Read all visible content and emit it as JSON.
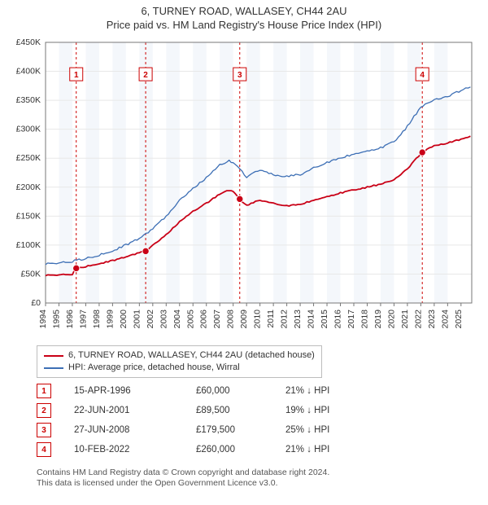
{
  "header": {
    "line1": "6, TURNEY ROAD, WALLASEY, CH44 2AU",
    "line2": "Price paid vs. HM Land Registry's House Price Index (HPI)"
  },
  "chart": {
    "type": "line",
    "background_color": "#ffffff",
    "plot_border_color": "#777777",
    "grid_color": "#e8e8e8",
    "light_band_color": "#f4f7fb",
    "x": {
      "min": 1994,
      "max": 2025.8,
      "ticks": [
        1994,
        1995,
        1996,
        1997,
        1998,
        1999,
        2000,
        2001,
        2002,
        2003,
        2004,
        2005,
        2006,
        2007,
        2008,
        2009,
        2010,
        2011,
        2012,
        2013,
        2014,
        2015,
        2016,
        2017,
        2018,
        2019,
        2020,
        2021,
        2022,
        2023,
        2024,
        2025
      ]
    },
    "y": {
      "min": 0,
      "max": 450000,
      "tick_step": 50000,
      "tick_labels": [
        "£0",
        "£50K",
        "£100K",
        "£150K",
        "£200K",
        "£250K",
        "£300K",
        "£350K",
        "£400K",
        "£450K"
      ]
    },
    "sale_guideline_color": "#cc0000",
    "sale_marker_border": "#cc0000",
    "sale_marker_badge_bg": "#ffffff",
    "series": [
      {
        "id": "price_paid",
        "label": "6, TURNEY ROAD, WALLASEY, CH44 2AU (detached house)",
        "color": "#c90016",
        "width": 1.8,
        "data": [
          [
            1994.0,
            48000
          ],
          [
            1995.0,
            48500
          ],
          [
            1996.0,
            50000
          ],
          [
            1996.29,
            60000
          ],
          [
            1997.0,
            63000
          ],
          [
            1998.0,
            68000
          ],
          [
            1999.0,
            73000
          ],
          [
            2000.0,
            80000
          ],
          [
            2001.0,
            87000
          ],
          [
            2001.47,
            89500
          ],
          [
            2002.0,
            100000
          ],
          [
            2003.0,
            118000
          ],
          [
            2004.0,
            140000
          ],
          [
            2005.0,
            158000
          ],
          [
            2006.0,
            172000
          ],
          [
            2007.0,
            188000
          ],
          [
            2007.7,
            195000
          ],
          [
            2008.0,
            193000
          ],
          [
            2008.49,
            179500
          ],
          [
            2009.0,
            168000
          ],
          [
            2010.0,
            178000
          ],
          [
            2011.0,
            172000
          ],
          [
            2012.0,
            168000
          ],
          [
            2013.0,
            170000
          ],
          [
            2014.0,
            178000
          ],
          [
            2015.0,
            184000
          ],
          [
            2016.0,
            190000
          ],
          [
            2017.0,
            195000
          ],
          [
            2018.0,
            200000
          ],
          [
            2019.0,
            205000
          ],
          [
            2020.0,
            212000
          ],
          [
            2021.0,
            232000
          ],
          [
            2022.0,
            258000
          ],
          [
            2022.11,
            260000
          ],
          [
            2023.0,
            272000
          ],
          [
            2024.0,
            276000
          ],
          [
            2025.0,
            283000
          ],
          [
            2025.7,
            288000
          ]
        ],
        "sale_points": [
          {
            "n": "1",
            "year": 1996.29,
            "price": 60000,
            "badge_y": 395000
          },
          {
            "n": "2",
            "year": 2001.47,
            "price": 89500,
            "badge_y": 395000
          },
          {
            "n": "3",
            "year": 2008.49,
            "price": 179500,
            "badge_y": 395000
          },
          {
            "n": "4",
            "year": 2022.11,
            "price": 260000,
            "badge_y": 395000
          }
        ]
      },
      {
        "id": "hpi",
        "label": "HPI: Average price, detached house, Wirral",
        "color": "#3d6fb5",
        "width": 1.3,
        "data": [
          [
            1994.0,
            68000
          ],
          [
            1995.0,
            69000
          ],
          [
            1996.0,
            72000
          ],
          [
            1997.0,
            77000
          ],
          [
            1998.0,
            83000
          ],
          [
            1999.0,
            90000
          ],
          [
            2000.0,
            100000
          ],
          [
            2001.0,
            112000
          ],
          [
            2002.0,
            128000
          ],
          [
            2003.0,
            150000
          ],
          [
            2004.0,
            178000
          ],
          [
            2005.0,
            198000
          ],
          [
            2006.0,
            216000
          ],
          [
            2007.0,
            238000
          ],
          [
            2007.7,
            245000
          ],
          [
            2008.0,
            243000
          ],
          [
            2009.0,
            218000
          ],
          [
            2010.0,
            230000
          ],
          [
            2011.0,
            222000
          ],
          [
            2012.0,
            218000
          ],
          [
            2013.0,
            222000
          ],
          [
            2014.0,
            233000
          ],
          [
            2015.0,
            243000
          ],
          [
            2016.0,
            250000
          ],
          [
            2017.0,
            258000
          ],
          [
            2018.0,
            263000
          ],
          [
            2019.0,
            268000
          ],
          [
            2020.0,
            278000
          ],
          [
            2021.0,
            305000
          ],
          [
            2022.0,
            338000
          ],
          [
            2023.0,
            350000
          ],
          [
            2024.0,
            357000
          ],
          [
            2025.0,
            367000
          ],
          [
            2025.7,
            373000
          ]
        ]
      }
    ]
  },
  "legend": {
    "series1": "6, TURNEY ROAD, WALLASEY, CH44 2AU (detached house)",
    "series2": "HPI: Average price, detached house, Wirral"
  },
  "sales": [
    {
      "n": "1",
      "date": "15-APR-1996",
      "price": "£60,000",
      "diff": "21% ↓ HPI"
    },
    {
      "n": "2",
      "date": "22-JUN-2001",
      "price": "£89,500",
      "diff": "19% ↓ HPI"
    },
    {
      "n": "3",
      "date": "27-JUN-2008",
      "price": "£179,500",
      "diff": "25% ↓ HPI"
    },
    {
      "n": "4",
      "date": "10-FEB-2022",
      "price": "£260,000",
      "diff": "21% ↓ HPI"
    }
  ],
  "footnote": {
    "line1": "Contains HM Land Registry data © Crown copyright and database right 2024.",
    "line2": "This data is licensed under the Open Government Licence v3.0."
  }
}
